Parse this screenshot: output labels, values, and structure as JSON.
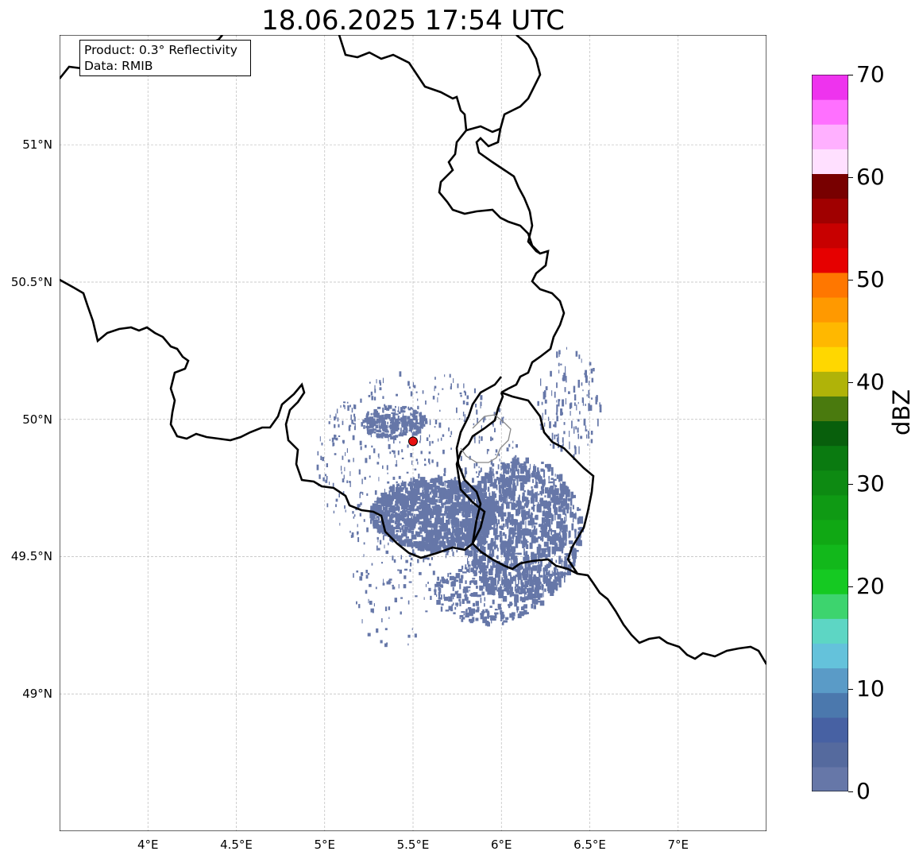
{
  "title": "18.06.2025 17:54 UTC",
  "info_box": {
    "product": "Product: 0.3° Reflectivity",
    "data": "Data: RMIB"
  },
  "map": {
    "lon_range": [
      3.5,
      7.5
    ],
    "lat_range": [
      48.5,
      51.4
    ],
    "radar_site": {
      "lon": 5.5,
      "lat": 49.92,
      "color": "#e81010"
    },
    "echo_color": "#6677a8",
    "lat_ticks": [
      {
        "value": 51.0,
        "label": "51°N"
      },
      {
        "value": 50.5,
        "label": "50.5°N"
      },
      {
        "value": 50.0,
        "label": "50°N"
      },
      {
        "value": 49.5,
        "label": "49.5°N"
      },
      {
        "value": 49.0,
        "label": "49°N"
      }
    ],
    "lon_ticks": [
      {
        "value": 4.0,
        "label": "4°E"
      },
      {
        "value": 4.5,
        "label": "4.5°E"
      },
      {
        "value": 5.0,
        "label": "5°E"
      },
      {
        "value": 5.5,
        "label": "5.5°E"
      },
      {
        "value": 6.0,
        "label": "6°E"
      },
      {
        "value": 6.5,
        "label": "6.5°E"
      },
      {
        "value": 7.0,
        "label": "7°E"
      }
    ]
  },
  "colorbar": {
    "label": "dBZ",
    "min": 0,
    "max": 70,
    "ticks": [
      "0",
      "10",
      "20",
      "30",
      "40",
      "50",
      "60",
      "70"
    ],
    "colors": [
      "#6677a8",
      "#556a9e",
      "#4761a3",
      "#4b78ad",
      "#5a9bc7",
      "#64c2db",
      "#5dd6c4",
      "#3dd46e",
      "#15c922",
      "#12b81b",
      "#10a814",
      "#0f9a14",
      "#0d8a12",
      "#0a7a10",
      "#085f0c",
      "#4a7a0e",
      "#b0b308",
      "#ffd700",
      "#ffb800",
      "#ff9900",
      "#ff7700",
      "#e60000",
      "#c80000",
      "#a00000",
      "#780000",
      "#ffe0ff",
      "#ffb0ff",
      "#ff70ff",
      "#ee33ee"
    ]
  }
}
